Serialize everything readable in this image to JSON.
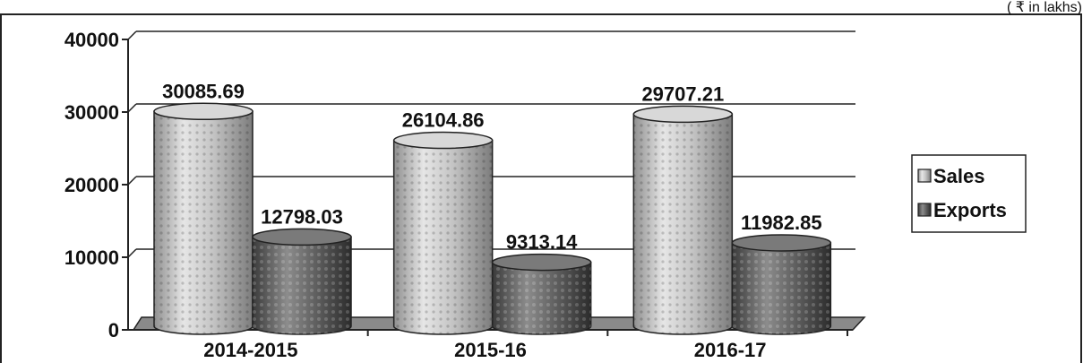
{
  "chart_data": {
    "type": "bar",
    "style": "3d-cylinder",
    "unit_note": "( ₹ in lakhs)",
    "categories": [
      "2014-2015",
      "2015-16",
      "2016-17"
    ],
    "series": [
      {
        "name": "Sales",
        "values": [
          30085.69,
          26104.86,
          29707.21
        ],
        "labels": [
          "30085.69",
          "26104.86",
          "29707.21"
        ],
        "color": "#c9c9c9"
      },
      {
        "name": "Exports",
        "values": [
          12798.03,
          9313.14,
          11982.85
        ],
        "labels": [
          "12798.03",
          "9313.14",
          "11982.85"
        ],
        "color": "#6a6a6a"
      }
    ],
    "yticks": [
      "0",
      "10000",
      "20000",
      "30000",
      "40000"
    ],
    "ylim": [
      0,
      40000
    ],
    "grid": true,
    "legend_position": "right"
  }
}
